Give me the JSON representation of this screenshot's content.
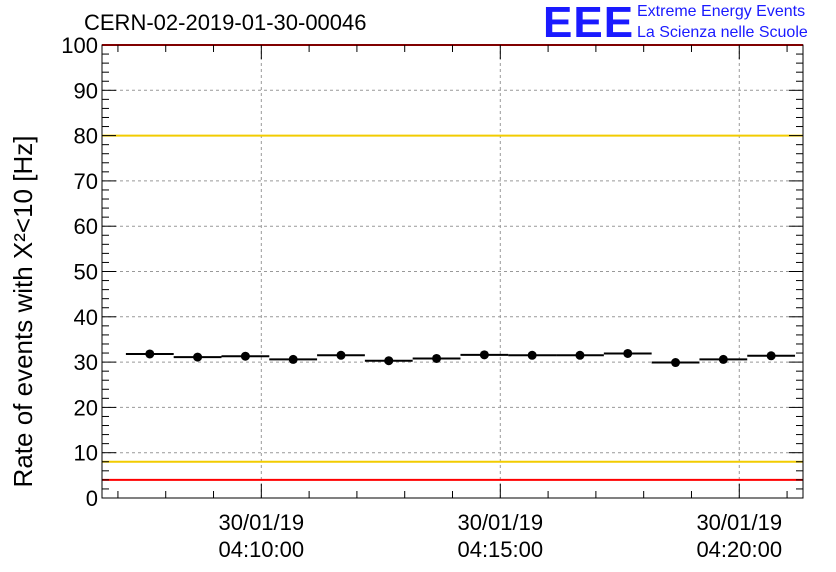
{
  "header": {
    "run_id": "CERN-02-2019-01-30-00046",
    "logo_text": "EEE",
    "logo_line1": "Extreme Energy Events",
    "logo_line2": "La Scienza nelle Scuole"
  },
  "colors": {
    "red_line": "#ff0000",
    "yellow_line": "#f2cc00",
    "points": "#000000",
    "grid": "#999999",
    "logo": "#1a1aff"
  },
  "chart_data": {
    "type": "scatter",
    "ylabel": "Rate of events with X²<10 [Hz]",
    "ylim": [
      0,
      100
    ],
    "yticks": [
      0,
      10,
      20,
      30,
      40,
      50,
      60,
      70,
      80,
      90,
      100
    ],
    "xlim": [
      "30/01/19 04:06:40",
      "30/01/19 04:21:20"
    ],
    "xtick_labels": [
      {
        "time": "04:10:00",
        "date": "30/01/19"
      },
      {
        "time": "04:15:00",
        "date": "30/01/19"
      },
      {
        "time": "04:20:00",
        "date": "30/01/19"
      }
    ],
    "grid": true,
    "points": [
      {
        "x": "04:07:40",
        "y": 31.8
      },
      {
        "x": "04:08:40",
        "y": 31.1
      },
      {
        "x": "04:09:40",
        "y": 31.3
      },
      {
        "x": "04:10:40",
        "y": 30.6
      },
      {
        "x": "04:11:40",
        "y": 31.5
      },
      {
        "x": "04:12:40",
        "y": 30.3
      },
      {
        "x": "04:13:40",
        "y": 30.8
      },
      {
        "x": "04:14:40",
        "y": 31.6
      },
      {
        "x": "04:15:40",
        "y": 31.5
      },
      {
        "x": "04:16:40",
        "y": 31.5
      },
      {
        "x": "04:17:40",
        "y": 31.9
      },
      {
        "x": "04:18:40",
        "y": 29.9
      },
      {
        "x": "04:19:40",
        "y": 30.6
      },
      {
        "x": "04:20:40",
        "y": 31.4
      }
    ],
    "horizontal_lines": [
      {
        "y": 100,
        "color": "#ff0000"
      },
      {
        "y": 80,
        "color": "#f2cc00"
      },
      {
        "y": 8,
        "color": "#f2cc00"
      },
      {
        "y": 4,
        "color": "#ff0000"
      }
    ]
  }
}
